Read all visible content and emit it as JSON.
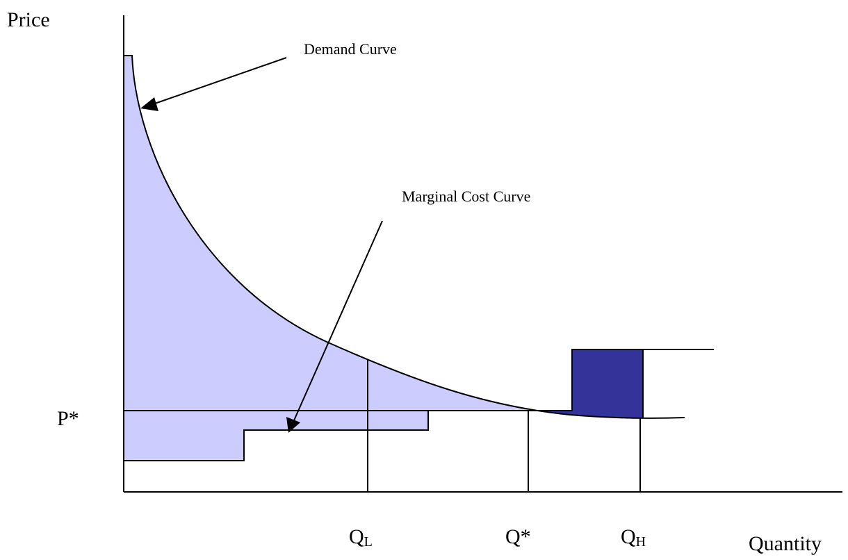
{
  "labels": {
    "price": "Price",
    "demand_curve": "Demand Curve",
    "marginal_cost_curve": "Marginal Cost Curve",
    "p_star": "P*",
    "q_l": {
      "main": "Q",
      "sub": "L"
    },
    "q_star": "Q*",
    "q_h": {
      "main": "Q",
      "sub": "H"
    },
    "quantity": "Quantity"
  }
}
